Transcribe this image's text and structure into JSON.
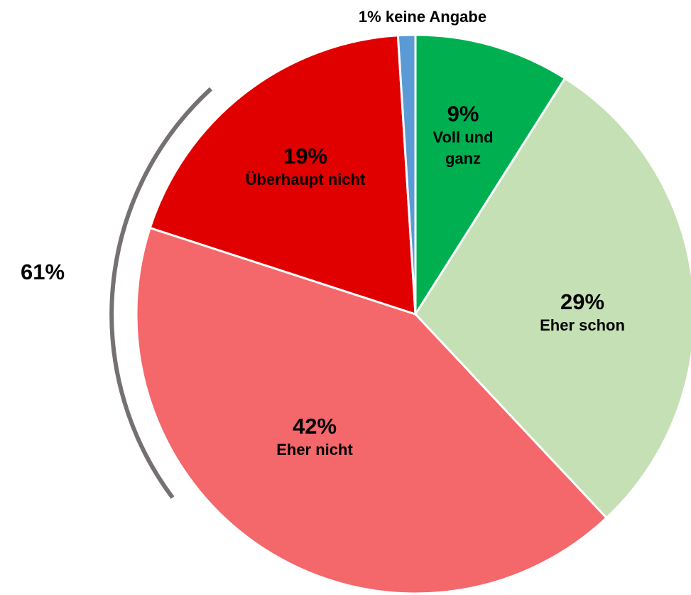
{
  "chart_data": {
    "type": "pie",
    "categories": [
      "Voll und ganz",
      "Eher schon",
      "Eher nicht",
      "Überhaupt nicht",
      "keine Angabe"
    ],
    "values": [
      9,
      29,
      42,
      19,
      1
    ],
    "value_labels": [
      "9%",
      "29%",
      "42%",
      "19%",
      "1%"
    ],
    "colors": [
      "#00b050",
      "#c5e0b4",
      "#f4676a",
      "#e00000",
      "#5b9bd5"
    ],
    "annotations": [
      {
        "text": "61%"
      }
    ]
  }
}
